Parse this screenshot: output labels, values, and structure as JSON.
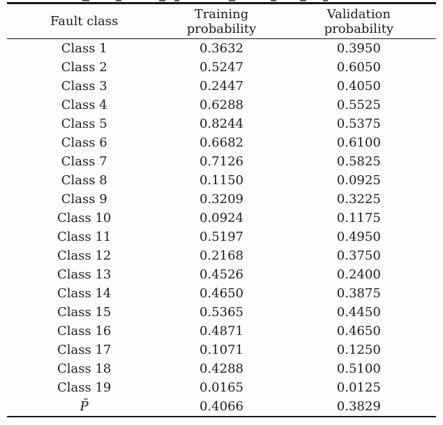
{
  "table": {
    "columns": [
      "Fault class",
      "Training\nprobability",
      "Validation\nprobability"
    ],
    "rows": [
      {
        "fault_class": "Class 1",
        "training": "0.3632",
        "validation": "0.3950"
      },
      {
        "fault_class": "Class 2",
        "training": "0.5247",
        "validation": "0.6050"
      },
      {
        "fault_class": "Class 3",
        "training": "0.2447",
        "validation": "0.4050"
      },
      {
        "fault_class": "Class 4",
        "training": "0.6288",
        "validation": "0.5525"
      },
      {
        "fault_class": "Class 5",
        "training": "0.8244",
        "validation": "0.5375"
      },
      {
        "fault_class": "Class 6",
        "training": "0.6682",
        "validation": "0.6100"
      },
      {
        "fault_class": "Class 7",
        "training": "0.7126",
        "validation": "0.5825"
      },
      {
        "fault_class": "Class 8",
        "training": "0.1150",
        "validation": "0.0925"
      },
      {
        "fault_class": "Class 9",
        "training": "0.3209",
        "validation": "0.3225"
      },
      {
        "fault_class": "Class 10",
        "training": "0.0924",
        "validation": "0.1175"
      },
      {
        "fault_class": "Class 11",
        "training": "0.5197",
        "validation": "0.4950"
      },
      {
        "fault_class": "Class 12",
        "training": "0.2168",
        "validation": "0.3750"
      },
      {
        "fault_class": "Class 13",
        "training": "0.4526",
        "validation": "0.2400"
      },
      {
        "fault_class": "Class 14",
        "training": "0.4650",
        "validation": "0.3875"
      },
      {
        "fault_class": "Class 15",
        "training": "0.5365",
        "validation": "0.4450"
      },
      {
        "fault_class": "Class 16",
        "training": "0.4871",
        "validation": "0.4650"
      },
      {
        "fault_class": "Class 17",
        "training": "0.1071",
        "validation": "0.1250"
      },
      {
        "fault_class": "Class 18",
        "training": "0.4288",
        "validation": "0.5100"
      },
      {
        "fault_class": "Class 19",
        "training": "0.0165",
        "validation": "0.0125"
      },
      {
        "fault_class": "P̄",
        "training": "0.4066",
        "validation": "0.3829",
        "mean_row": true
      }
    ]
  }
}
